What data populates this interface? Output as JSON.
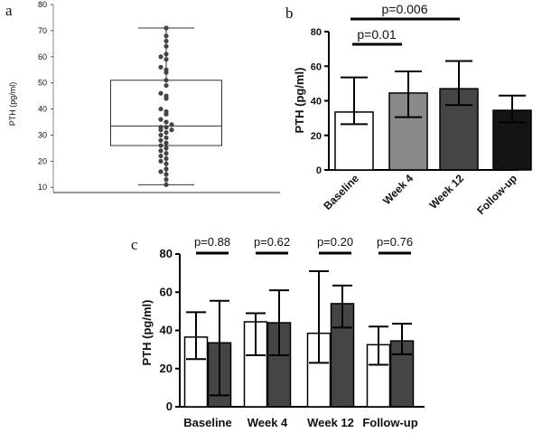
{
  "panels": {
    "a": {
      "label": "a",
      "ylabel": "PTH (pg/ml)",
      "yticks": [
        "10",
        "20",
        "30",
        "40",
        "50",
        "60",
        "70",
        "80"
      ]
    },
    "b": {
      "label": "b",
      "ylabel": "PTH (pg/ml)",
      "yticks": [
        "0",
        "20",
        "40",
        "60",
        "80"
      ],
      "categories": [
        "Baseline",
        "Week 4",
        "Week 12",
        "Follow-up"
      ],
      "annotations": [
        "p=0.01",
        "p=0.006"
      ]
    },
    "c": {
      "label": "c",
      "ylabel": "PTH (pg/ml)",
      "yticks": [
        "0",
        "20",
        "40",
        "60",
        "80"
      ],
      "categories": [
        "Baseline",
        "Week 4",
        "Week 12",
        "Follow-up"
      ],
      "annotations": [
        "p=0.88",
        "p=0.62",
        "p=0.20",
        "p=0.76"
      ]
    }
  },
  "chart_data": [
    {
      "type": "box",
      "panel": "a",
      "ylabel": "PTH (pg/ml)",
      "ylim": [
        8,
        80
      ],
      "box": {
        "whisker_low": 11,
        "q1": 26,
        "median": 33.5,
        "q3": 51,
        "whisker_high": 71
      },
      "points": [
        11,
        13,
        15,
        16,
        17,
        19,
        20,
        21,
        22,
        23,
        24,
        25,
        26,
        27,
        28,
        29,
        30,
        31,
        32,
        32,
        33,
        33,
        34,
        35,
        36,
        38,
        39,
        40,
        44,
        45,
        46,
        49,
        51,
        54,
        55,
        56,
        59,
        60,
        61,
        64,
        66,
        68,
        71
      ],
      "colors": {
        "points": "#444444",
        "box": "#333333"
      }
    },
    {
      "type": "bar",
      "panel": "b",
      "categories": [
        "Baseline",
        "Week 4",
        "Week 12",
        "Follow-up"
      ],
      "values": [
        33.5,
        44.5,
        47,
        34.5
      ],
      "error_low": [
        26.5,
        30.5,
        37.5,
        27.5
      ],
      "error_high": [
        53.5,
        57,
        63,
        43
      ],
      "ylabel": "PTH (pg/ml)",
      "ylim": [
        0,
        80
      ],
      "colors": [
        "#ffffff",
        "#8a8a8a",
        "#454545",
        "#141414"
      ],
      "annotations": [
        {
          "text": "p=0.01",
          "from": "Baseline",
          "to": "Week 4"
        },
        {
          "text": "p=0.006",
          "from": "Baseline",
          "to": "Week 12"
        }
      ]
    },
    {
      "type": "bar",
      "panel": "c",
      "categories": [
        "Baseline",
        "Week 4",
        "Week 12",
        "Follow-up"
      ],
      "series": [
        {
          "values": [
            36.5,
            44.5,
            38.5,
            32.5
          ],
          "error_low": [
            25,
            27,
            23,
            22
          ],
          "error_high": [
            49.5,
            49,
            71,
            42
          ],
          "color": "#ffffff"
        },
        {
          "values": [
            33.5,
            44,
            54,
            34.5
          ],
          "error_low": [
            6,
            27,
            41.5,
            27.5
          ],
          "error_high": [
            55.5,
            61,
            63.5,
            43.5
          ],
          "color": "#454545"
        }
      ],
      "ylabel": "PTH (pg/ml)",
      "ylim": [
        0,
        80
      ],
      "annotations": [
        "p=0.88",
        "p=0.62",
        "p=0.20",
        "p=0.76"
      ]
    }
  ]
}
